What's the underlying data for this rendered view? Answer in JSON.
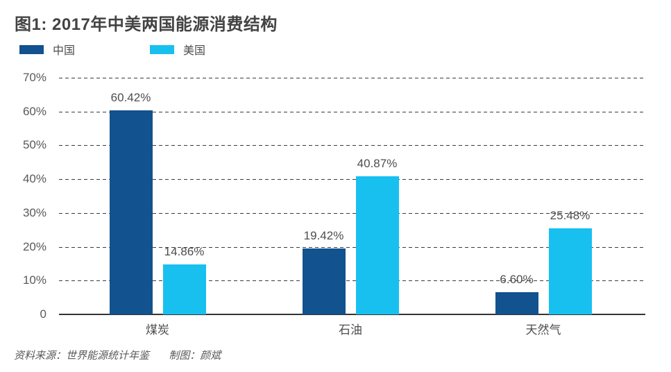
{
  "title": "图1: 2017年中美两国能源消费结构",
  "legend": [
    {
      "label": "中国",
      "color": "#11528f"
    },
    {
      "label": "美国",
      "color": "#18c0f0"
    }
  ],
  "chart_data": {
    "type": "bar",
    "title": "图1: 2017年中美两国能源消费结构",
    "categories": [
      "煤炭",
      "石油",
      "天然气"
    ],
    "series": [
      {
        "name": "中国",
        "color": "#11528f",
        "values": [
          60.42,
          19.42,
          6.6
        ],
        "labels": [
          "60.42%",
          "19.42%",
          "6.60%"
        ]
      },
      {
        "name": "美国",
        "color": "#18c0f0",
        "values": [
          14.86,
          40.87,
          25.48
        ],
        "labels": [
          "14.86%",
          "40.87%",
          "25.48%"
        ]
      }
    ],
    "xlabel": "",
    "ylabel": "",
    "ylim": [
      0,
      70
    ],
    "yticks": [
      {
        "value": 0,
        "label": "0"
      },
      {
        "value": 10,
        "label": "10%"
      },
      {
        "value": 20,
        "label": "20%"
      },
      {
        "value": 30,
        "label": "30%"
      },
      {
        "value": 40,
        "label": "40%"
      },
      {
        "value": 50,
        "label": "50%"
      },
      {
        "value": 60,
        "label": "60%"
      },
      {
        "value": 70,
        "label": "70%"
      }
    ],
    "grid": "horizontal-dashed",
    "legend_position": "top-left",
    "value_labels_shown": true
  },
  "footer": {
    "source_label": "资料来源：世界能源统计年鉴",
    "credit_label": "制图：颜斌"
  }
}
